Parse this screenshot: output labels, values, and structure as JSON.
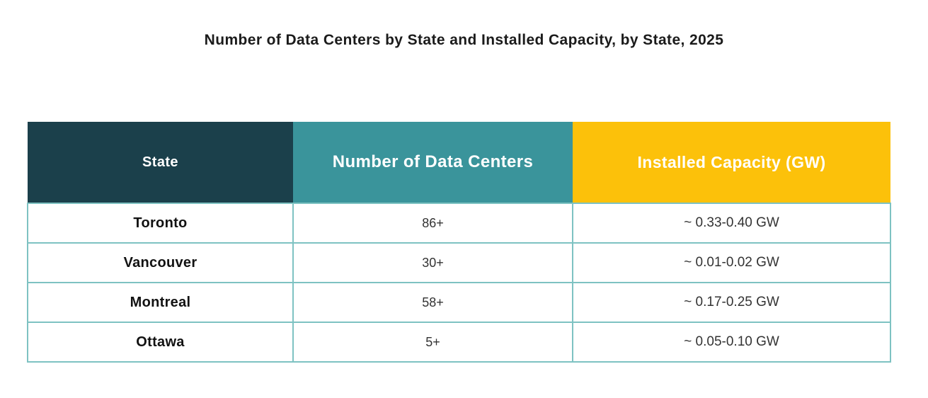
{
  "title": "Number of Data Centers by State and Installed Capacity, by State, 2025",
  "table": {
    "columns": [
      {
        "label": "State"
      },
      {
        "label": "Number of Data Centers"
      },
      {
        "label": "Installed Capacity (GW)"
      }
    ],
    "rows": [
      {
        "state": "Toronto",
        "count": "86+",
        "capacity": "~ 0.33-0.40 GW"
      },
      {
        "state": "Vancouver",
        "count": "30+",
        "capacity": "~ 0.01-0.02 GW"
      },
      {
        "state": "Montreal",
        "count": "58+",
        "capacity": "~ 0.17-0.25 GW"
      },
      {
        "state": "Ottawa",
        "count": "5+",
        "capacity": "~ 0.05-0.10 GW"
      }
    ]
  },
  "colors": {
    "header_state_bg": "#1b404b",
    "header_count_bg": "#3a949b",
    "header_capacity_bg": "#fcc10a",
    "header_text": "#ffffff",
    "body_border": "#7ec2c2",
    "body_text": "#333333",
    "title_text": "#1b1b1b",
    "background": "#ffffff"
  },
  "chart_data": {
    "type": "table",
    "title": "Number of Data Centers by State and Installed Capacity, by State, 2025",
    "columns": [
      "State",
      "Number of Data Centers",
      "Installed Capacity (GW)"
    ],
    "rows": [
      [
        "Toronto",
        "86+",
        "~ 0.33-0.40 GW"
      ],
      [
        "Vancouver",
        "30+",
        "~ 0.01-0.02 GW"
      ],
      [
        "Montreal",
        "58+",
        "~ 0.17-0.25 GW"
      ],
      [
        "Ottawa",
        "5+",
        "~ 0.05-0.10 GW"
      ]
    ]
  }
}
